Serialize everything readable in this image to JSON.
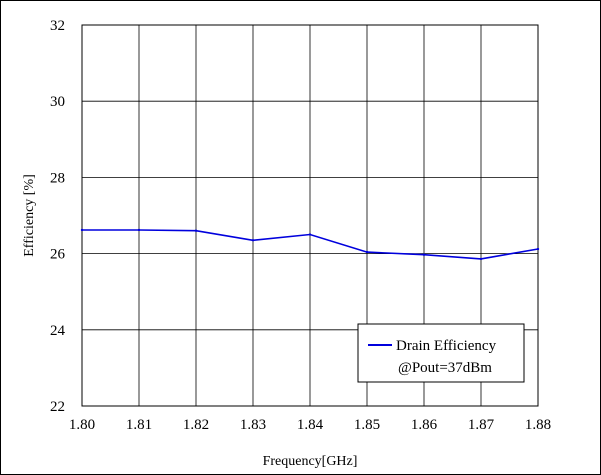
{
  "chart_data": {
    "type": "line",
    "title": "",
    "xlabel": "Frequency[GHz]",
    "ylabel": "Efficiency [%]",
    "x": [
      1.8,
      1.81,
      1.82,
      1.83,
      1.84,
      1.85,
      1.86,
      1.87,
      1.88
    ],
    "x_tick_labels": [
      "1.80",
      "1.81",
      "1.82",
      "1.83",
      "1.84",
      "1.85",
      "1.86",
      "1.87",
      "1.88"
    ],
    "y_tick_labels": [
      "22",
      "24",
      "26",
      "28",
      "30",
      "32"
    ],
    "xlim": [
      1.8,
      1.88
    ],
    "ylim": [
      22,
      32
    ],
    "grid": true,
    "legend_position": "bottom-right",
    "series": [
      {
        "name": "Drain Efficiency",
        "sublabel": "@Pout=37dBm",
        "color": "#0000dd",
        "values": [
          26.62,
          26.62,
          26.6,
          26.35,
          26.5,
          26.04,
          25.97,
          25.86,
          26.12
        ]
      }
    ]
  }
}
